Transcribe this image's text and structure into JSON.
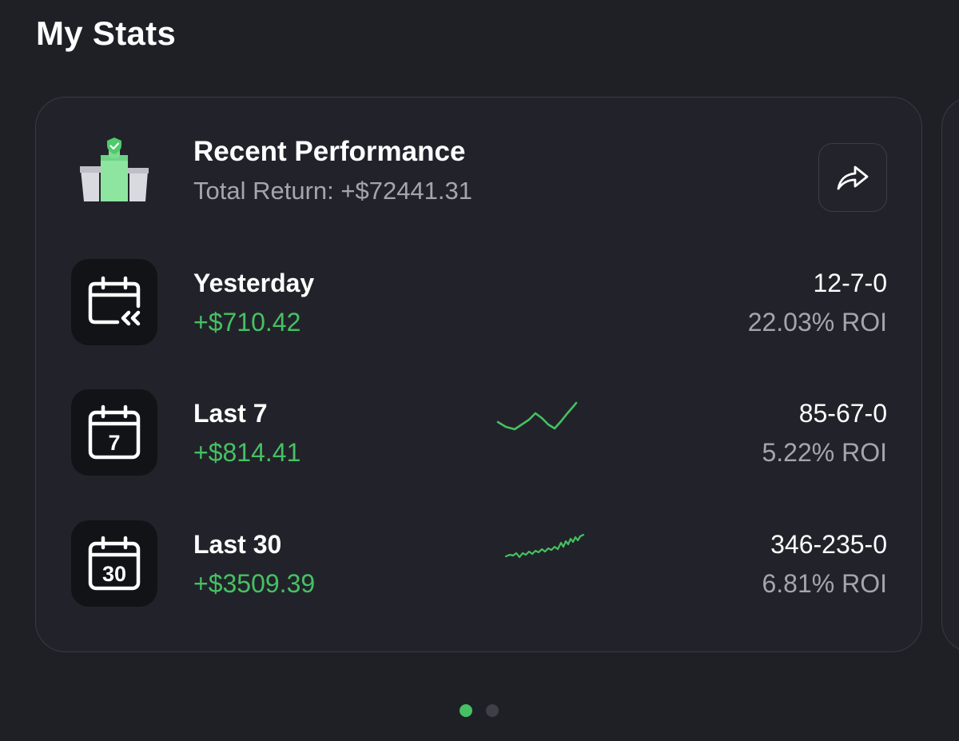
{
  "page": {
    "title": "My Stats"
  },
  "card": {
    "title": "Recent Performance",
    "subtitle": "Total Return: +$72441.31",
    "share_icon": "share-arrow-icon"
  },
  "rows": [
    {
      "label": "Yesterday",
      "amount": "+$710.42",
      "record": "12-7-0",
      "roi": "22.03% ROI",
      "icon": "calendar-rewind-icon",
      "icon_text": ""
    },
    {
      "label": "Last 7",
      "amount": "+$814.41",
      "record": "85-67-0",
      "roi": "5.22% ROI",
      "icon": "calendar-7-icon",
      "icon_text": "7"
    },
    {
      "label": "Last 30",
      "amount": "+$3509.39",
      "record": "346-235-0",
      "roi": "6.81% ROI",
      "icon": "calendar-30-icon",
      "icon_text": "30"
    }
  ],
  "colors": {
    "positive": "#45c163",
    "background": "#1f2026",
    "card": "#22232a"
  },
  "pagination": {
    "count": 2,
    "active_index": 0
  }
}
